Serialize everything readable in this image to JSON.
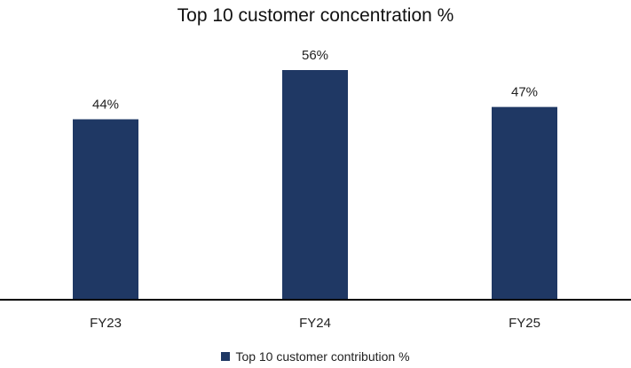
{
  "chart_data": {
    "type": "bar",
    "title": "Top 10 customer concentration %",
    "categories": [
      "FY23",
      "FY24",
      "FY25"
    ],
    "series": [
      {
        "name": "Top 10 customer contribution %",
        "values": [
          44,
          56,
          47
        ],
        "labels": [
          "44%",
          "56%",
          "47%"
        ],
        "color": "#1f3864"
      }
    ],
    "xlabel": "",
    "ylabel": "",
    "ylim": [
      0,
      60
    ],
    "grid": false,
    "legend_position": "bottom-center"
  }
}
